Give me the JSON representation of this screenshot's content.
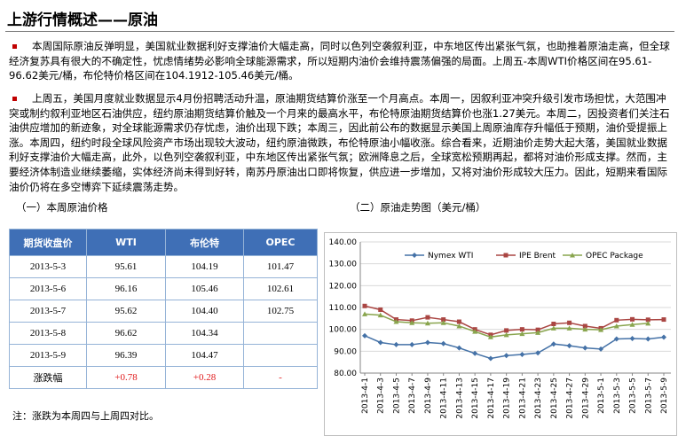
{
  "header": {
    "title": "上游行情概述——原油"
  },
  "paragraphs": [
    "本周国际原油反弹明显，美国就业数据利好支撑油价大幅走高，同时以色列空袭叙利亚，中东地区传出紧张气氛，也助推着原油走高，但全球经济复苏具有很大的不确定性，忧虑情绪势必影响全球能源需求，所以短期内油价会维持震荡偏强的局面。上周五-本周WTI价格区间在95.61-96.62美元/桶，布伦特价格区间在104.1912-105.46美元/桶。",
    "上周五，美国月度就业数据显示4月份招聘活动升温，原油期货结算价涨至一个月高点。本周一，因叙利亚冲突升级引发市场担忧，大范围冲突或制约叙利亚地区石油供应，纽约原油期货结算价触及一个月来的最高水平，布伦特原油期货结算价也涨1.27美元。本周二，因投资者们关注石油供应增加的新迹象，对全球能源需求仍存忧虑，油价出现下跌；本周三，因此前公布的数据显示美国上周原油库存升幅低于预期，油价受提振上涨。本周四，纽约时段全球风险资产市场出现较大波动，纽约原油微跌，布伦特原油小幅收涨。综合看来，近期油价走势大起大落，美国就业数据利好支撑油价大幅走高，此外，以色列空袭叙利亚，中东地区传出紧张气氛；欧洲降息之后，全球宽松预期再起，都将对油价形成支撑。然而，主要经济体制造业继续萎缩，实体经济尚未得到好转，南苏丹原油出口即将恢复，供应进一步增加，又将对油价形成较大压力。因此，短期来看国际油价仍将在多空博弈下延续震荡走势。"
  ],
  "sections": [
    "（一）本周原油价格",
    "（二）原油走势图（美元/桶）"
  ],
  "table": {
    "header": [
      "期货收盘价",
      "WTI",
      "布伦特",
      "OPEC"
    ],
    "rows": [
      [
        "2013-5-3",
        "95.61",
        "104.19",
        "101.47"
      ],
      [
        "2013-5-6",
        "96.16",
        "105.46",
        "102.61"
      ],
      [
        "2013-5-7",
        "95.62",
        "104.40",
        "102.75"
      ],
      [
        "2013-5-8",
        "96.62",
        "104.34",
        null
      ],
      [
        "2013-5-9",
        "96.39",
        "104.47",
        null
      ],
      [
        "涨跌幅",
        "+0.78",
        "+0.28",
        "-"
      ]
    ]
  },
  "note": "注：涨跌为本周四与上周四对比。",
  "chart_data": {
    "type": "line",
    "categories": [
      "2013-4-1",
      "2013-4-3",
      "2013-4-5",
      "2013-4-7",
      "2013-4-9",
      "2013-4-11",
      "2013-4-13",
      "2013-4-15",
      "2013-4-17",
      "2013-4-19",
      "2013-4-21",
      "2013-4-23",
      "2013-4-25",
      "2013-4-27",
      "2013-4-29",
      "2013-5-1",
      "2013-5-3",
      "2013-5-5",
      "2013-5-7",
      "2013-5-9"
    ],
    "series": [
      {
        "name": "Nymex WTI",
        "color": "#4572a7",
        "marker": "diamond",
        "values": [
          97.1,
          94,
          93,
          93,
          94,
          93.5,
          91.5,
          89,
          86.7,
          88,
          88.5,
          89.2,
          93.3,
          92.5,
          91.5,
          91,
          95.6,
          95.8,
          95.6,
          96.4
        ]
      },
      {
        "name": "IPE Brent",
        "color": "#aa4643",
        "marker": "square",
        "values": [
          110.7,
          109,
          104.5,
          104,
          105.5,
          104.5,
          103.5,
          100,
          97.5,
          99.5,
          100,
          99.8,
          102.5,
          103,
          101.5,
          100.5,
          104.2,
          104.6,
          104.4,
          104.5
        ]
      },
      {
        "name": "OPEC Package",
        "color": "#89a54e",
        "marker": "triangle",
        "values": [
          107,
          106.5,
          103.5,
          103,
          102.8,
          103,
          101.5,
          99,
          96.5,
          97.5,
          98,
          98.5,
          100.5,
          100.5,
          100,
          99.8,
          101.5,
          102.2,
          102.75,
          null
        ]
      }
    ],
    "ylim": [
      80,
      140
    ],
    "yticks": [
      {
        "value": 80,
        "label": "80.00"
      },
      {
        "value": 90,
        "label": "90.00"
      },
      {
        "value": 100,
        "label": "100.00"
      },
      {
        "value": 110,
        "label": "110.00"
      },
      {
        "value": 120,
        "label": "120.00"
      },
      {
        "value": 130,
        "label": "130.00"
      },
      {
        "value": 140,
        "label": "140.00"
      }
    ],
    "grid": true
  }
}
